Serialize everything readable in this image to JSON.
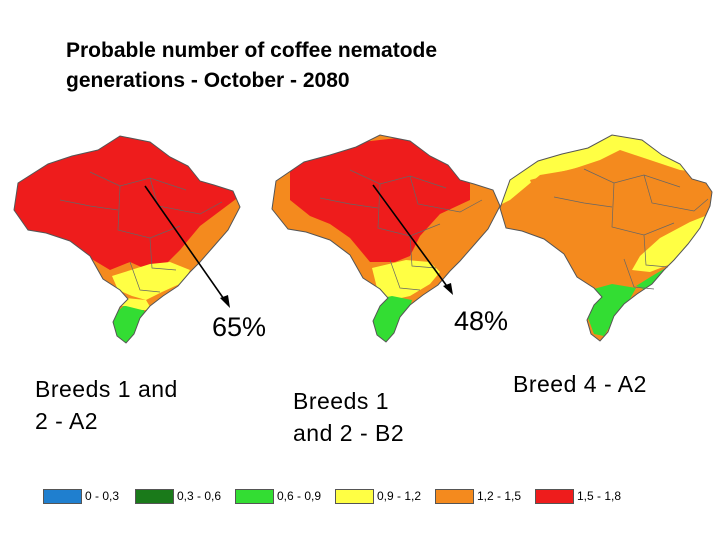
{
  "title": "Probable  number of coffee nematode\ngenerations - October - 2080",
  "arrows": [
    {
      "percent": "65%"
    },
    {
      "percent": "48%"
    }
  ],
  "maps": [
    {
      "caption": "Breeds 1 and\n2 - A2"
    },
    {
      "caption": "Breeds 1\nand 2 - B2"
    },
    {
      "caption": "Breed 4 - A2"
    }
  ],
  "legend": [
    {
      "label": "0 - 0,3",
      "color": "#1f7fcf"
    },
    {
      "label": "0,3 - 0,6",
      "color": "#1a7a1a"
    },
    {
      "label": "0,6 - 0,9",
      "color": "#33dd33"
    },
    {
      "label": "0,9 - 1,2",
      "color": "#ffff44"
    },
    {
      "label": "1,2 - 1,5",
      "color": "#f48a1e"
    },
    {
      "label": "1,5 - 1,8",
      "color": "#ee1c1c"
    }
  ]
}
